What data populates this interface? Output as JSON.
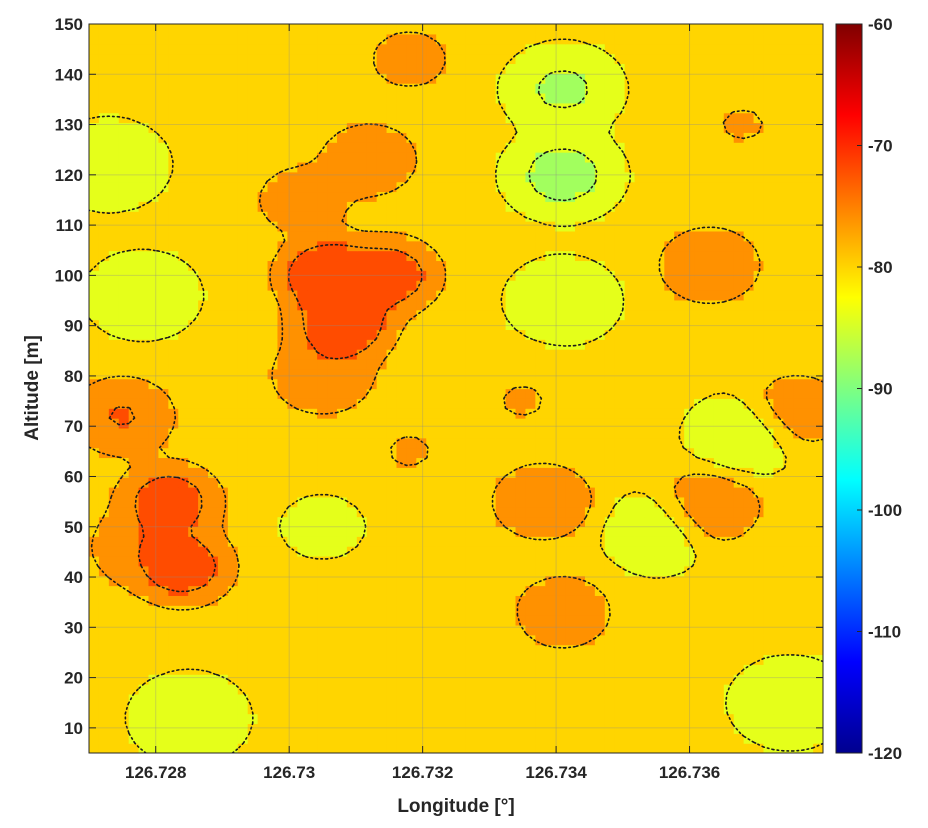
{
  "chart_data": {
    "type": "heatmap",
    "xlabel": "Longitude [°]",
    "ylabel": "Altitude [m]",
    "xlim": [
      126.727,
      126.738
    ],
    "ylim": [
      5,
      150
    ],
    "xticks": [
      126.728,
      126.73,
      126.732,
      126.734,
      126.736
    ],
    "xtick_labels": [
      "126.728",
      "126.73",
      "126.732",
      "126.734",
      "126.736"
    ],
    "yticks": [
      10,
      20,
      30,
      40,
      50,
      60,
      70,
      80,
      90,
      100,
      110,
      120,
      130,
      140,
      150
    ],
    "ytick_labels": [
      "10",
      "20",
      "30",
      "40",
      "50",
      "60",
      "70",
      "80",
      "90",
      "100",
      "110",
      "120",
      "130",
      "140",
      "150"
    ],
    "colorbar": {
      "colormap": "jet",
      "range": [
        -120,
        -60
      ],
      "ticks": [
        -60,
        -70,
        -80,
        -90,
        -100,
        -110,
        -120
      ],
      "tick_labels": [
        "-60",
        "-70",
        "-80",
        "-90",
        "-100",
        "-110",
        "-120"
      ]
    },
    "contour_levels": [
      -86,
      -82,
      -78,
      -74,
      -70
    ],
    "grid": true,
    "field_blobs": [
      {
        "x": 126.7306,
        "y": 100,
        "value": -68
      },
      {
        "x": 126.7308,
        "y": 90,
        "value": -69
      },
      {
        "x": 126.7315,
        "y": 100,
        "value": -70
      },
      {
        "x": 126.7305,
        "y": 80,
        "value": -73
      },
      {
        "x": 126.7312,
        "y": 123,
        "value": -74
      },
      {
        "x": 126.7302,
        "y": 115,
        "value": -75
      },
      {
        "x": 126.7284,
        "y": 42,
        "value": -70
      },
      {
        "x": 126.7278,
        "y": 46,
        "value": -73
      },
      {
        "x": 126.7282,
        "y": 55,
        "value": -70
      },
      {
        "x": 126.7275,
        "y": 72,
        "value": -72
      },
      {
        "x": 126.7338,
        "y": 55,
        "value": -73
      },
      {
        "x": 126.7318,
        "y": 65,
        "value": -77
      },
      {
        "x": 126.7335,
        "y": 75,
        "value": -77
      },
      {
        "x": 126.7341,
        "y": 33,
        "value": -74
      },
      {
        "x": 126.7363,
        "y": 102,
        "value": -73
      },
      {
        "x": 126.7363,
        "y": 54,
        "value": -73
      },
      {
        "x": 126.7376,
        "y": 73,
        "value": -74
      },
      {
        "x": 126.7368,
        "y": 130,
        "value": -77
      },
      {
        "x": 126.7318,
        "y": 143,
        "value": -76
      },
      {
        "x": 126.7341,
        "y": 120,
        "value": -89
      },
      {
        "x": 126.7341,
        "y": 137,
        "value": -88
      },
      {
        "x": 126.7341,
        "y": 95,
        "value": -86
      },
      {
        "x": 126.7273,
        "y": 122,
        "value": -87
      },
      {
        "x": 126.7278,
        "y": 96,
        "value": -86
      },
      {
        "x": 126.7285,
        "y": 12,
        "value": -87
      },
      {
        "x": 126.7375,
        "y": 15,
        "value": -87
      },
      {
        "x": 126.7368,
        "y": 68,
        "value": -87
      },
      {
        "x": 126.7355,
        "y": 49,
        "value": -86
      },
      {
        "x": 126.7305,
        "y": 50,
        "value": -83
      },
      {
        "x": 126.7325,
        "y": 30,
        "value": -80
      }
    ],
    "field_base": -81
  }
}
